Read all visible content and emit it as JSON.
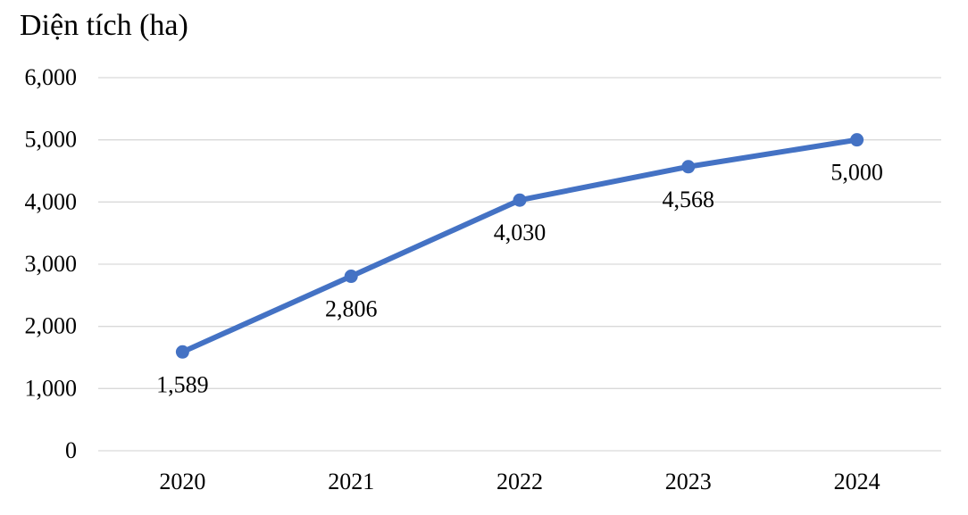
{
  "chart_data": {
    "type": "line",
    "title": "",
    "ylabel": "Diện tích (ha)",
    "xlabel": "",
    "categories": [
      "2020",
      "2021",
      "2022",
      "2023",
      "2024"
    ],
    "series": [
      {
        "values": [
          1589,
          2806,
          4030,
          4568,
          5000
        ],
        "data_labels": [
          "1,589",
          "2,806",
          "4,030",
          "4,568",
          "5,000"
        ],
        "color": "#4472C4"
      }
    ],
    "ylim": [
      0,
      6000
    ],
    "yticks": [
      0,
      1000,
      2000,
      3000,
      4000,
      5000,
      6000
    ],
    "ytick_labels": [
      "0",
      "1,000",
      "2,000",
      "3,000",
      "4,000",
      "5,000",
      "6,000"
    ],
    "grid": true,
    "legend": "none",
    "colors": {
      "line": "#4472C4",
      "grid": "#D9D9D9",
      "text": "#000000"
    }
  }
}
